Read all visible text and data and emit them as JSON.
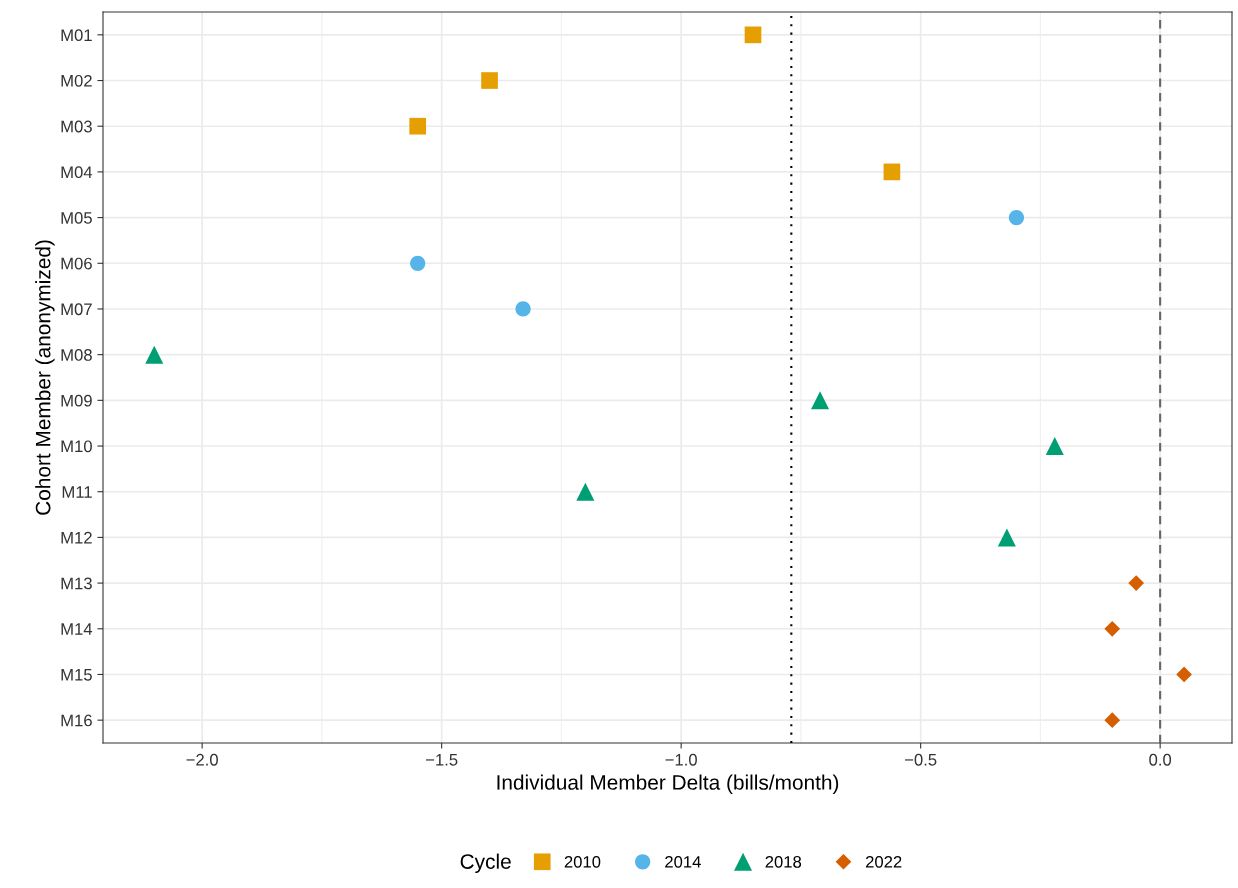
{
  "chart_data": {
    "type": "scatter",
    "xlabel": "Individual Member Delta (bills/month)",
    "ylabel": "Cohort Member (anonymized)",
    "legend_title": "Cycle",
    "categories": [
      "M01",
      "M02",
      "M03",
      "M04",
      "M05",
      "M06",
      "M07",
      "M08",
      "M09",
      "M10",
      "M11",
      "M12",
      "M13",
      "M14",
      "M15",
      "M16"
    ],
    "series": [
      {
        "name": "2010",
        "color": "#e69f00",
        "marker": "square",
        "values": [
          -0.85,
          -1.4,
          -1.55,
          -0.56,
          null,
          null,
          null,
          null,
          null,
          null,
          null,
          null,
          null,
          null,
          null,
          null
        ]
      },
      {
        "name": "2014",
        "color": "#56b4e9",
        "marker": "circle",
        "values": [
          null,
          null,
          null,
          null,
          -0.3,
          -1.55,
          -1.33,
          null,
          null,
          null,
          null,
          null,
          null,
          null,
          null,
          null
        ]
      },
      {
        "name": "2018",
        "color": "#009e73",
        "marker": "triangle",
        "values": [
          null,
          null,
          null,
          null,
          null,
          null,
          null,
          -2.1,
          -0.71,
          -0.22,
          -1.2,
          -0.32,
          null,
          null,
          null,
          null
        ]
      },
      {
        "name": "2022",
        "color": "#d55e00",
        "marker": "diamond",
        "values": [
          null,
          null,
          null,
          null,
          null,
          null,
          null,
          null,
          null,
          null,
          null,
          null,
          -0.05,
          -0.1,
          0.05,
          -0.1
        ]
      }
    ],
    "orientation": "horizontal",
    "xlim": [
      -2.207,
      0.15
    ],
    "xticks": [
      {
        "value": -2.0,
        "label": "−2.0"
      },
      {
        "value": -1.5,
        "label": "−1.5"
      },
      {
        "value": -1.0,
        "label": "−1.0"
      },
      {
        "value": -0.5,
        "label": "−0.5"
      },
      {
        "value": 0.0,
        "label": "0.0"
      }
    ],
    "ref_lines": [
      {
        "axis": "x",
        "value": -0.77,
        "color": "#000000",
        "line_style": "dotted"
      },
      {
        "axis": "x",
        "value": 0.0,
        "color": "#666666",
        "line_style": "dashed"
      }
    ],
    "grid": true,
    "legend": "bottom"
  }
}
